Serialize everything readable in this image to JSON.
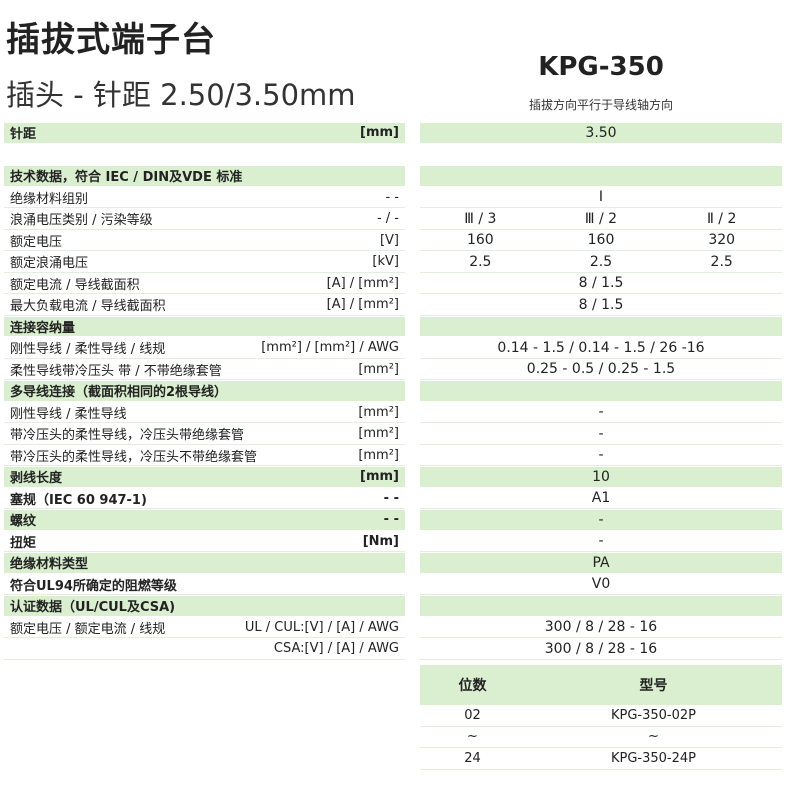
{
  "header": {
    "title": "插拔式端子台",
    "subtitle": "插头 - 针距  2.50/3.50mm",
    "model": "KPG-350",
    "model_note": "插拔方向平行于导线轴方向"
  },
  "rows": [
    {
      "label": "针距",
      "unit": "[mm]",
      "values": [
        "3.50"
      ],
      "green": true,
      "bold": true
    },
    {
      "label": "",
      "unit": "",
      "values": [],
      "blank": true
    },
    {
      "label": "技术数据，符合 IEC / DIN及VDE 标准",
      "unit": "",
      "values": [],
      "green": true,
      "bold": true
    },
    {
      "label": "绝缘材料组别",
      "unit": "- -",
      "values": [
        "I"
      ]
    },
    {
      "label": "浪涌电压类别 / 污染等级",
      "unit": "- / -",
      "values": [
        "Ⅲ / 3",
        "Ⅲ / 2",
        "Ⅱ / 2"
      ]
    },
    {
      "label": "额定电压",
      "unit": "[V]",
      "values": [
        "160",
        "160",
        "320"
      ]
    },
    {
      "label": "额定浪涌电压",
      "unit": "[kV]",
      "values": [
        "2.5",
        "2.5",
        "2.5"
      ]
    },
    {
      "label": "额定电流 / 导线截面积",
      "unit": "[A] / [mm²]",
      "values": [
        "8 / 1.5"
      ]
    },
    {
      "label": "最大负载电流 / 导线截面积",
      "unit": "[A] / [mm²]",
      "values": [
        "8 / 1.5"
      ]
    },
    {
      "label": "连接容纳量",
      "unit": "",
      "values": [],
      "green": true,
      "bold": true
    },
    {
      "label": "刚性导线 / 柔性导线 / 线规",
      "unit": "[mm²] / [mm²] / AWG",
      "values": [
        "0.14 - 1.5 / 0.14 - 1.5 / 26 -16"
      ]
    },
    {
      "label": "柔性导线带冷压头 带 / 不带绝缘套管",
      "unit": "[mm²]",
      "values": [
        "0.25 - 0.5 / 0.25 - 1.5"
      ]
    },
    {
      "label": "多导线连接（截面积相同的2根导线）",
      "unit": "",
      "values": [],
      "green": true,
      "bold": true
    },
    {
      "label": "刚性导线 / 柔性导线",
      "unit": "[mm²]",
      "values": [
        "-"
      ]
    },
    {
      "label": "带冷压头的柔性导线，冷压头带绝缘套管",
      "unit": "[mm²]",
      "values": [
        "-"
      ]
    },
    {
      "label": "带冷压头的柔性导线，冷压头不带绝缘套管",
      "unit": "[mm²]",
      "values": [
        "-"
      ]
    },
    {
      "label": "剥线长度",
      "unit": "[mm]",
      "values": [
        "10"
      ],
      "green": true,
      "bold": true
    },
    {
      "label": "塞规（IEC 60 947-1)",
      "unit": "- -",
      "values": [
        "A1"
      ],
      "bold": true
    },
    {
      "label": "螺纹",
      "unit": "- -",
      "values": [
        "-"
      ],
      "green": true,
      "bold": true
    },
    {
      "label": "扭矩",
      "unit": "[Nm]",
      "values": [
        "-"
      ],
      "bold": true
    },
    {
      "label": "绝缘材料类型",
      "unit": "",
      "values": [
        "PA"
      ],
      "green": true,
      "bold": true
    },
    {
      "label": "符合UL94所确定的阻燃等级",
      "unit": "",
      "values": [
        "V0"
      ],
      "bold": true
    },
    {
      "label": "认证数据（UL/CUL及CSA)",
      "unit": "",
      "values": [],
      "green": true,
      "bold": true
    },
    {
      "label": "额定电压 / 额定电流 / 线规",
      "unit": "UL / CUL:[V] / [A] / AWG",
      "values": [
        "300 / 8 / 28 - 16"
      ]
    },
    {
      "label": "",
      "unit": "CSA:[V] / [A] / AWG",
      "values": [
        "300 / 8 / 28 - 16"
      ]
    }
  ],
  "order_table": {
    "headers": [
      "位数",
      "型号"
    ],
    "rows": [
      [
        "02",
        "KPG-350-02P"
      ],
      [
        "~",
        "~"
      ],
      [
        "24",
        "KPG-350-24P"
      ]
    ]
  },
  "colors": {
    "band": "#d9efcf"
  }
}
